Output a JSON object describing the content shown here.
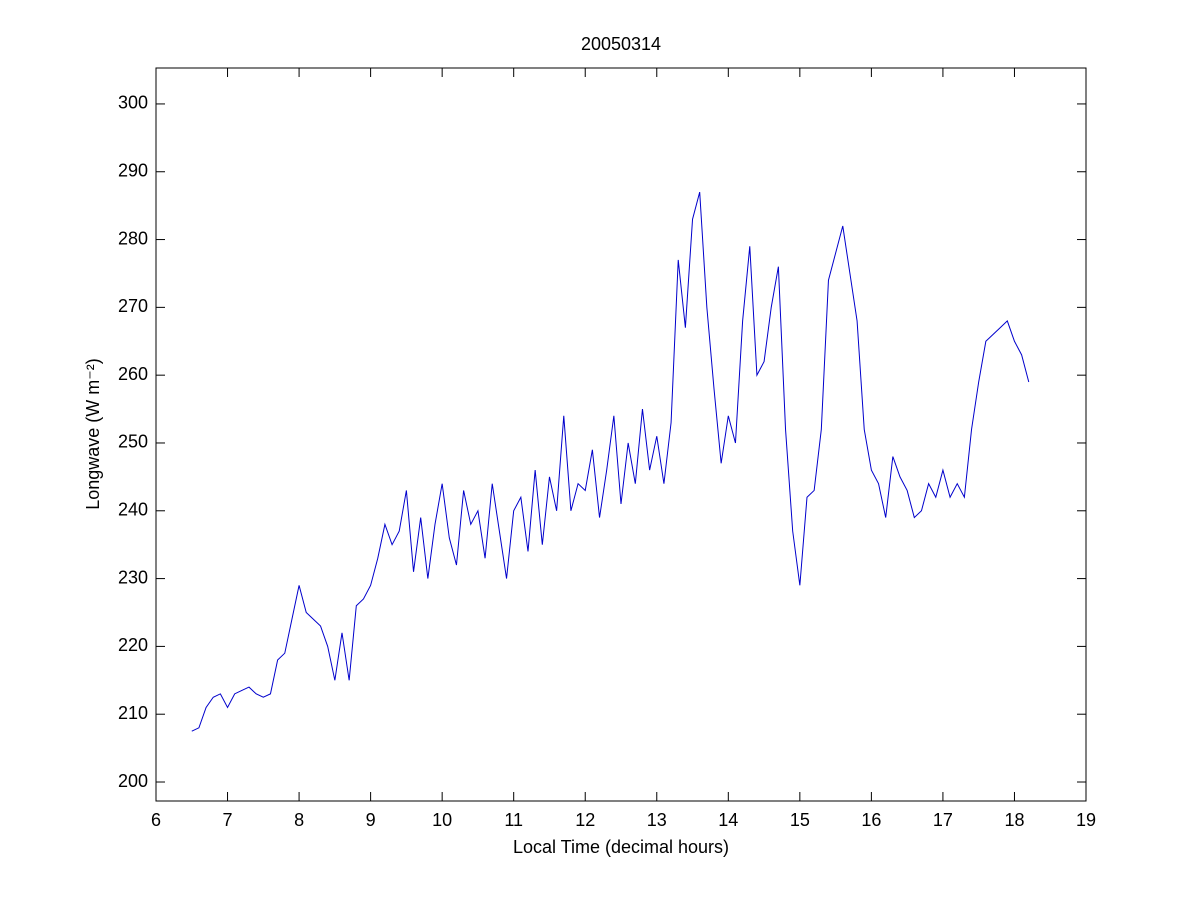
{
  "chart_data": {
    "type": "line",
    "title": "20050314",
    "xlabel": "Local Time (decimal hours)",
    "ylabel": "Longwave (W m⁻²)",
    "xlim": [
      6,
      19
    ],
    "xticks": [
      6,
      7,
      8,
      9,
      10,
      11,
      12,
      13,
      14,
      15,
      16,
      17,
      18,
      19
    ],
    "ylim": [
      197.2,
      305.3
    ],
    "yticks": [
      200,
      210,
      220,
      230,
      240,
      250,
      260,
      270,
      280,
      290,
      300
    ],
    "grid": false,
    "series": [
      {
        "color": "#0000cc",
        "x": [
          6.5,
          6.6,
          6.7,
          6.8,
          6.9,
          7.0,
          7.1,
          7.2,
          7.3,
          7.4,
          7.5,
          7.6,
          7.7,
          7.8,
          7.9,
          8.0,
          8.1,
          8.2,
          8.3,
          8.4,
          8.5,
          8.6,
          8.7,
          8.8,
          8.9,
          9.0,
          9.1,
          9.2,
          9.3,
          9.4,
          9.5,
          9.6,
          9.7,
          9.8,
          9.9,
          10.0,
          10.1,
          10.2,
          10.3,
          10.4,
          10.5,
          10.6,
          10.7,
          10.8,
          10.9,
          11.0,
          11.1,
          11.2,
          11.3,
          11.4,
          11.5,
          11.6,
          11.7,
          11.8,
          11.9,
          12.0,
          12.1,
          12.2,
          12.3,
          12.4,
          12.5,
          12.6,
          12.7,
          12.8,
          12.9,
          13.0,
          13.1,
          13.2,
          13.3,
          13.4,
          13.5,
          13.6,
          13.7,
          13.8,
          13.9,
          14.0,
          14.1,
          14.2,
          14.3,
          14.4,
          14.5,
          14.6,
          14.7,
          14.8,
          14.9,
          15.0,
          15.1,
          15.2,
          15.3,
          15.4,
          15.5,
          15.6,
          15.7,
          15.8,
          15.9,
          16.0,
          16.1,
          16.2,
          16.3,
          16.4,
          16.5,
          16.6,
          16.7,
          16.8,
          16.9,
          17.0,
          17.1,
          17.2,
          17.3,
          17.4,
          17.5,
          17.6,
          17.7,
          17.8,
          17.9,
          18.0,
          18.1,
          18.2
        ],
        "values": [
          207.5,
          208,
          211,
          212.5,
          213,
          211,
          213,
          213.5,
          214,
          213,
          212.5,
          213,
          218,
          219,
          224,
          229,
          225,
          224,
          223,
          220,
          215,
          222,
          215,
          226,
          227,
          229,
          233,
          238,
          235,
          237,
          243,
          231,
          239,
          230,
          238,
          244,
          236,
          232,
          243,
          238,
          240,
          233,
          244,
          237,
          230,
          240,
          242,
          234,
          246,
          235,
          245,
          240,
          254,
          240,
          244,
          243,
          249,
          239,
          246,
          254,
          241,
          250,
          244,
          255,
          246,
          251,
          244,
          253,
          277,
          267,
          283,
          287,
          270,
          258,
          247,
          254,
          250,
          268,
          279,
          260,
          262,
          270,
          276,
          252,
          237,
          229,
          242,
          243,
          252,
          274,
          278,
          282,
          275,
          268,
          252,
          246,
          244,
          239,
          248,
          245,
          243,
          239,
          240,
          244,
          242,
          246,
          242,
          244,
          242,
          252,
          259,
          265,
          266,
          267,
          268,
          265,
          263,
          259
        ]
      }
    ]
  }
}
